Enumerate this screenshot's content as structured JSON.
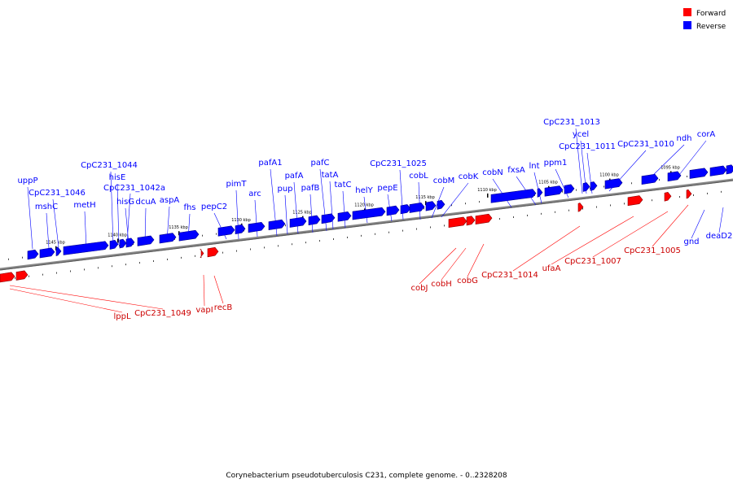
{
  "legend": {
    "forward": {
      "label": "Forward",
      "color": "#ff0000"
    },
    "reverse": {
      "label": "Reverse",
      "color": "#0000ff"
    }
  },
  "caption": "Corynebacterium pseudotuberculosis C231, complete genome. - 0..2328208",
  "tick_labels": [
    "1145 kbp",
    "1140 kbp",
    "1135 kbp",
    "1130 kbp",
    "1125 kbp",
    "1120 kbp",
    "1115 kbp",
    "1110 kbp",
    "1105 kbp",
    "1100 kbp",
    "1095 kbp"
  ],
  "reverse_genes": [
    "uppP",
    "CpC231_1046",
    "mshC",
    "metH",
    "CpC231_1044",
    "hisE",
    "CpC231_1042a",
    "hisG",
    "dcuA",
    "aspA",
    "fhs",
    "pepC2",
    "pimT",
    "arc",
    "pafA1",
    "pup",
    "pafA",
    "pafB",
    "pafC",
    "tatA",
    "tatC",
    "helY",
    "pepE",
    "CpC231_1025",
    "cobL",
    "cobM",
    "cobK",
    "cobN",
    "fxsA",
    "lnt",
    "ppm1",
    "CpC231_1013",
    "ycel",
    "CpC231_1011",
    "CpC231_1010",
    "ndh",
    "corA",
    "gnd",
    "deaD2"
  ],
  "forward_genes": [
    "lppL",
    "CpC231_1049",
    "vapI",
    "recB",
    "cobJ",
    "cobH",
    "cobG",
    "CpC231_1014",
    "ufaA",
    "CpC231_1007",
    "CpC231_1005"
  ]
}
